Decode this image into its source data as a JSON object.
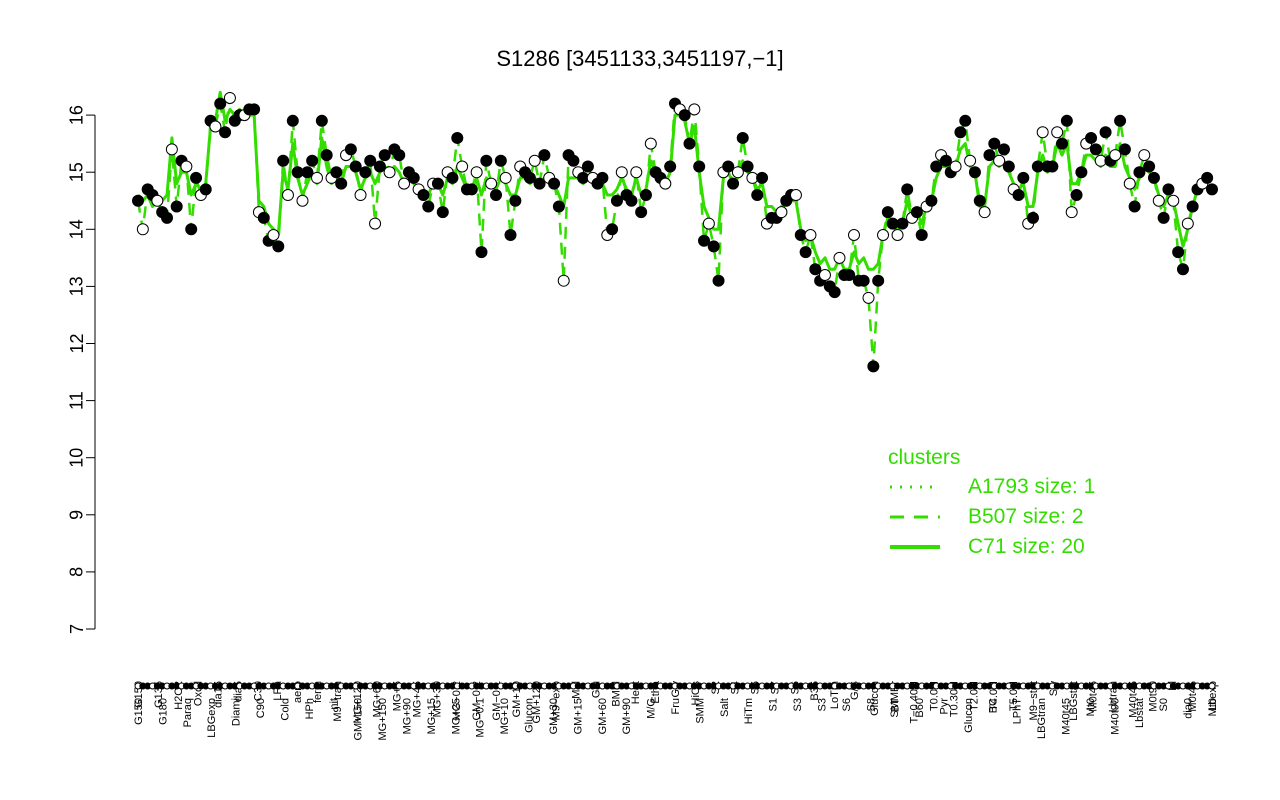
{
  "chart_data": {
    "type": "line",
    "title": "S1286 [3451133,3451197,−1]",
    "xlabel": "",
    "ylabel": "",
    "ylim": [
      7,
      16.5
    ],
    "y_ticks": [
      7,
      8,
      9,
      10,
      11,
      12,
      13,
      14,
      15,
      16
    ],
    "x_tick_labels_top": [
      "G150",
      "G135",
      "H2O2",
      "Oxctl",
      "dia15",
      "dia5",
      "C30",
      "LPh",
      "aero",
      "ferm",
      "M9−tran",
      "MG+120",
      "MG+60",
      "MG+5",
      "MG+45",
      "MG+30",
      "MG−0.2",
      "GM−0.2",
      "GM−0.1",
      "GM+10",
      "GM+120",
      "M9−exp",
      "Mal",
      "Glu",
      "BMM",
      "Heat",
      "Etha",
      "Gly",
      "HiOs",
      "S2",
      "S4",
      "S5",
      "S7",
      "S6",
      "B36",
      "LoTm",
      "G/S",
      "Glucon",
      "SMMPr",
      "T−0.40H",
      "T0.0H",
      "T0.30H",
      "T2.0H",
      "T4.0H",
      "T5.0H",
      "M9−stat",
      "Sw",
      "LBGstat",
      "M0t45",
      "Lbtran",
      "M40t45",
      "M0t90",
      "Bl",
      "M0t45",
      "Lbexp"
    ],
    "x_tick_labels_bottom": [
      "G150",
      "G180",
      "Paraq",
      "LBGexp",
      "Diami",
      "C90",
      "Cold",
      "HPh",
      "nit",
      "GM+150",
      "MG+150",
      "MG+90",
      "MG+15",
      "MG+25",
      "MG−0.1",
      "MG+10",
      "Glucon",
      "GM+30",
      "GM+15",
      "GM+60",
      "GM+90",
      "M/G",
      "Fru",
      "SMM",
      "Salt",
      "HiTm",
      "S1",
      "S3",
      "S3",
      "S6",
      "S8",
      "BT",
      "B60",
      "Pyr",
      "Glucon",
      "BC",
      "LPhT",
      "LBGtran",
      "M40t45",
      "Mt0",
      "M40t90",
      "Lbstat",
      "S0",
      "dia0",
      "Mt0"
    ],
    "series": [
      {
        "name": "",
        "values": [
          14.5,
          14.0,
          14.7,
          14.6,
          14.5,
          14.3,
          14.2,
          15.4,
          14.4,
          15.2,
          15.1,
          14.0,
          14.9,
          14.6,
          14.7,
          15.9,
          15.8,
          16.2,
          15.7,
          16.3,
          15.9,
          16.0,
          16.0,
          16.1,
          16.1,
          14.3,
          14.2,
          13.8,
          13.9,
          13.7,
          15.2,
          14.6,
          15.9,
          15.0,
          14.5,
          15.0,
          15.2,
          14.9,
          15.9,
          15.3,
          14.9,
          15.0,
          14.8,
          15.3,
          15.4,
          15.1,
          14.6,
          15.0,
          15.2,
          14.1,
          15.1,
          15.3,
          15.0,
          15.4,
          15.3,
          14.8,
          15.0,
          14.9,
          14.7,
          14.6,
          14.4,
          14.8,
          14.8,
          14.3,
          15.0,
          14.9,
          15.6,
          15.1,
          14.7,
          14.7,
          15.0,
          13.6,
          15.2,
          14.8,
          14.6,
          15.2,
          14.9,
          13.9,
          14.5,
          15.1,
          15.0,
          14.9,
          15.2,
          14.8,
          15.3,
          14.9,
          14.8,
          14.4,
          13.1,
          15.3,
          15.2,
          15.0,
          14.9,
          15.1,
          14.9,
          14.8,
          14.9,
          13.9,
          14.0,
          14.5,
          15.0,
          14.6,
          14.5,
          15.0,
          14.3,
          14.6,
          15.5,
          15.0,
          14.9,
          14.8,
          15.1,
          16.2,
          16.1,
          16.0,
          15.5,
          16.1,
          15.1,
          13.8,
          14.1,
          13.7,
          13.1,
          15.0,
          15.1,
          14.8,
          15.0,
          15.6,
          15.1,
          14.9,
          14.6,
          14.9,
          14.1,
          14.2,
          14.2,
          14.3,
          14.5,
          14.6,
          14.6,
          13.9,
          13.6,
          13.9,
          13.3,
          13.1,
          13.2,
          13.0,
          12.9,
          13.5,
          13.2,
          13.2,
          13.9,
          13.1,
          13.1,
          12.8,
          11.6,
          13.1,
          13.9,
          14.3,
          14.1,
          13.9,
          14.1,
          14.7,
          14.2,
          14.3,
          13.9,
          14.4,
          14.5,
          15.1,
          15.3,
          15.2,
          15.0,
          15.1,
          15.7,
          15.9,
          15.2,
          15.0,
          14.5,
          14.3,
          15.3,
          15.5,
          15.2,
          15.4,
          15.1,
          14.7,
          14.6,
          14.9,
          14.1,
          14.2,
          15.1,
          15.7,
          15.1,
          15.1,
          15.7,
          15.5,
          15.9,
          14.3,
          14.6,
          15.0,
          15.5,
          15.6,
          15.4,
          15.2,
          15.7,
          15.2,
          15.3,
          15.9,
          15.4,
          14.8,
          14.4,
          15.0,
          15.3,
          15.1,
          14.9,
          14.5,
          14.2,
          14.7,
          14.5,
          13.6,
          13.3,
          14.1,
          14.4,
          14.7,
          14.8,
          14.9,
          14.7
        ]
      },
      {
        "name": "",
        "values": [
          14.6,
          14.5,
          14.6,
          14.4,
          14.5,
          14.5,
          14.6,
          15.6,
          14.8,
          15.0,
          15.0,
          14.6,
          14.8,
          14.7,
          14.8,
          15.8,
          15.9,
          16.4,
          15.9,
          16.1,
          16.0,
          16.1,
          16.0,
          16.0,
          16.0,
          14.5,
          14.4,
          14.1,
          14.0,
          13.9,
          15.0,
          14.7,
          15.5,
          14.9,
          14.6,
          14.8,
          15.0,
          14.8,
          15.6,
          15.1,
          14.8,
          14.9,
          14.8,
          15.1,
          15.1,
          15.0,
          14.7,
          14.9,
          15.0,
          14.8,
          15.0,
          15.1,
          15.0,
          15.1,
          15.0,
          14.8,
          14.9,
          14.8,
          14.7,
          14.7,
          14.6,
          14.8,
          14.8,
          14.6,
          14.9,
          14.8,
          15.1,
          14.9,
          14.7,
          14.7,
          14.9,
          14.6,
          14.9,
          14.8,
          14.7,
          14.9,
          14.8,
          14.6,
          14.6,
          14.9,
          14.9,
          14.8,
          14.9,
          14.8,
          14.9,
          14.8,
          14.8,
          14.6,
          14.4,
          14.9,
          14.9,
          14.9,
          14.8,
          14.9,
          14.8,
          14.8,
          14.8,
          14.6,
          14.6,
          14.7,
          14.9,
          14.7,
          14.6,
          14.9,
          14.6,
          14.7,
          15.2,
          15.0,
          14.9,
          14.8,
          15.0,
          16.0,
          16.0,
          15.9,
          15.5,
          15.8,
          15.0,
          14.4,
          14.2,
          14.0,
          14.0,
          14.9,
          15.0,
          14.8,
          14.9,
          15.2,
          15.0,
          14.9,
          14.7,
          14.8,
          14.4,
          14.4,
          14.3,
          14.4,
          14.5,
          14.5,
          14.5,
          14.0,
          13.8,
          13.9,
          13.6,
          13.4,
          13.5,
          13.3,
          13.3,
          13.5,
          13.3,
          13.3,
          13.6,
          13.4,
          13.5,
          13.3,
          13.3,
          13.4,
          13.9,
          14.2,
          14.1,
          14.0,
          14.1,
          14.5,
          14.2,
          14.3,
          14.1,
          14.4,
          14.5,
          14.9,
          15.1,
          15.1,
          15.0,
          15.1,
          15.4,
          15.5,
          15.1,
          15.0,
          14.4,
          14.4,
          15.1,
          15.2,
          15.1,
          15.2,
          15.0,
          14.8,
          14.7,
          14.8,
          14.4,
          14.4,
          15.0,
          15.3,
          15.0,
          15.1,
          15.5,
          15.3,
          15.5,
          14.8,
          14.8,
          15.0,
          15.3,
          15.3,
          15.2,
          15.1,
          15.3,
          15.1,
          15.1,
          15.5,
          15.1,
          14.9,
          14.7,
          14.9,
          15.1,
          15.0,
          14.9,
          14.6,
          14.4,
          14.6,
          14.5,
          14.1,
          13.7,
          14.0,
          14.4,
          14.7,
          14.8,
          14.9,
          14.9
        ]
      }
    ],
    "legend": {
      "title": "clusters",
      "placement": "right",
      "items": [
        {
          "label": "A1793 size: 1",
          "style": "dotted"
        },
        {
          "label": "B507 size: 2",
          "style": "dashed"
        },
        {
          "label": "C71 size: 20",
          "style": "solid"
        }
      ]
    },
    "colors": {
      "line": "#33dd00",
      "point_filled": "#000000",
      "point_open": "#ffffff",
      "axis": "#000000"
    },
    "grid": false
  }
}
